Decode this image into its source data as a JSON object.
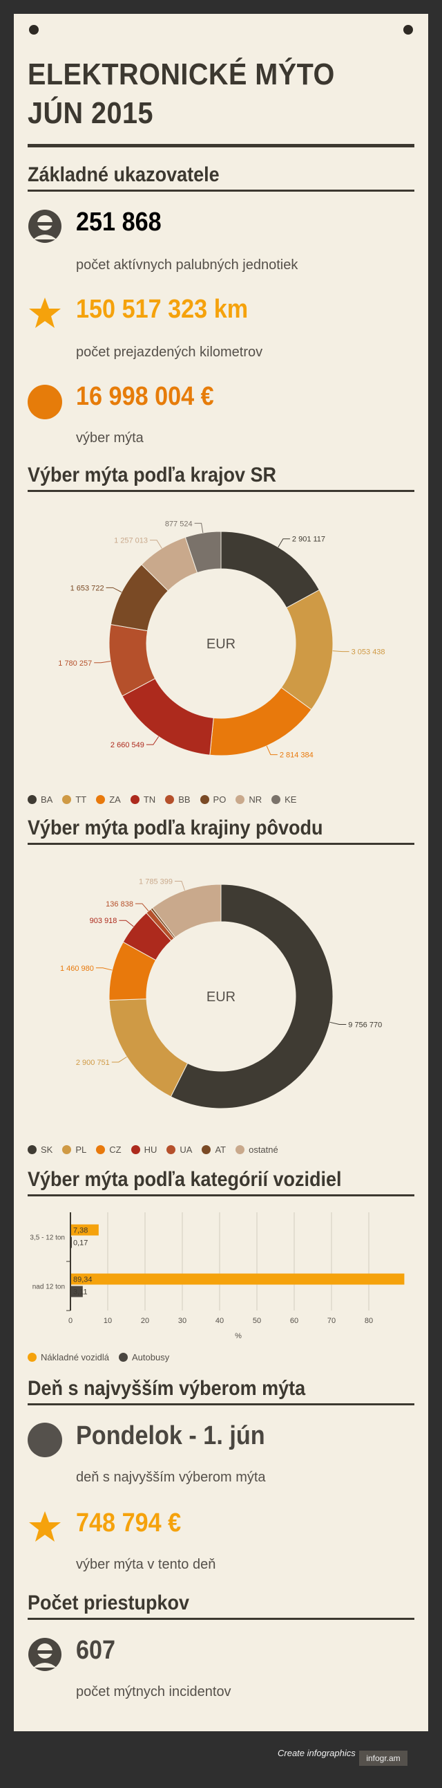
{
  "page": {
    "title_line1": "ELEKTRONICKÉ MÝTO",
    "title_line2": "JÚN 2015",
    "footer": {
      "cta": "Create infographics",
      "brand": "infogr.am"
    }
  },
  "basic": {
    "heading": "Základné ukazovatele",
    "items": [
      {
        "icon": "user-icon",
        "value": "251 868",
        "label": "počet aktívnych palubných jednotiek",
        "color": "#4a4640"
      },
      {
        "icon": "star-icon",
        "value": "150 517 323 km",
        "label": "počet prejazdených kilometrov",
        "color": "#f5a20c"
      },
      {
        "icon": "circle-icon",
        "value": "16 998 004 €",
        "label": "výber mýta",
        "color": "#e67c0a"
      }
    ]
  },
  "chart_data": [
    {
      "type": "pie",
      "title": "Výber mýta podľa krajov SR",
      "center_label": "EUR",
      "categories": [
        "BA",
        "TT",
        "ZA",
        "TN",
        "BB",
        "PO",
        "NR",
        "KE"
      ],
      "values": [
        2901117,
        3053438,
        2814384,
        2660549,
        1780257,
        1653722,
        1257013,
        877524
      ],
      "value_labels": [
        "2 901 117",
        "3 053 438",
        "2 814 384",
        "2 660 549",
        "1 780 257",
        "1 653 722",
        "1 257 013",
        "877 524"
      ],
      "colors": [
        "#3f3b33",
        "#cf9a45",
        "#e8790c",
        "#ad2a1d",
        "#b5502b",
        "#7a4a25",
        "#c9a98c",
        "#7a726a"
      ],
      "legend": "bottom"
    },
    {
      "type": "pie",
      "title": "Výber mýta podľa krajiny pôvodu",
      "center_label": "EUR",
      "categories": [
        "SK",
        "PL",
        "CZ",
        "HU",
        "UA",
        "AT",
        "ostatné"
      ],
      "values": [
        9756770,
        2900751,
        1460980,
        903918,
        136838,
        53348,
        1785399
      ],
      "value_labels": [
        "9 756 770",
        "2 900 751",
        "1 460 980",
        "903 918",
        "136 838",
        "",
        "1 785 399"
      ],
      "colors": [
        "#3f3b33",
        "#cf9a45",
        "#e8790c",
        "#ad2a1d",
        "#b5502b",
        "#7a4a25",
        "#c9a98c"
      ],
      "legend": "bottom"
    },
    {
      "type": "bar",
      "orientation": "horizontal",
      "title": "Výber mýta podľa kategórií vozidiel",
      "categories": [
        "3,5 - 12 ton",
        "nad 12 ton"
      ],
      "series": [
        {
          "name": "Nákladné vozidlá",
          "values": [
            7.38,
            89.34
          ],
          "labels": [
            "7,38",
            "89,34"
          ],
          "color": "#f5a20c"
        },
        {
          "name": "Autobusy",
          "values": [
            0.17,
            3.11
          ],
          "labels": [
            "0,17",
            "3,11"
          ],
          "color": "#4a4640"
        }
      ],
      "xlabel": "%",
      "xticks": [
        "0",
        "10",
        "20",
        "30",
        "40",
        "50",
        "60",
        "70",
        "80"
      ],
      "xlim": [
        0,
        90
      ],
      "grid": true,
      "legend": "bottom"
    }
  ],
  "peak": {
    "heading": "Deň s najvyšším výberom mýta",
    "items": [
      {
        "icon": "circle-icon",
        "value": "Pondelok - 1. jún",
        "label": "deň s najvyšším výberom mýta",
        "color": "#4a4640"
      },
      {
        "icon": "star-icon",
        "value": "748 794 €",
        "label": "výber mýta v tento deň",
        "color": "#f5a20c"
      }
    ]
  },
  "offences": {
    "heading": "Počet priestupkov",
    "items": [
      {
        "icon": "user-icon",
        "value": "607",
        "label": "počet mýtnych incidentov",
        "color": "#4a4640"
      }
    ]
  }
}
